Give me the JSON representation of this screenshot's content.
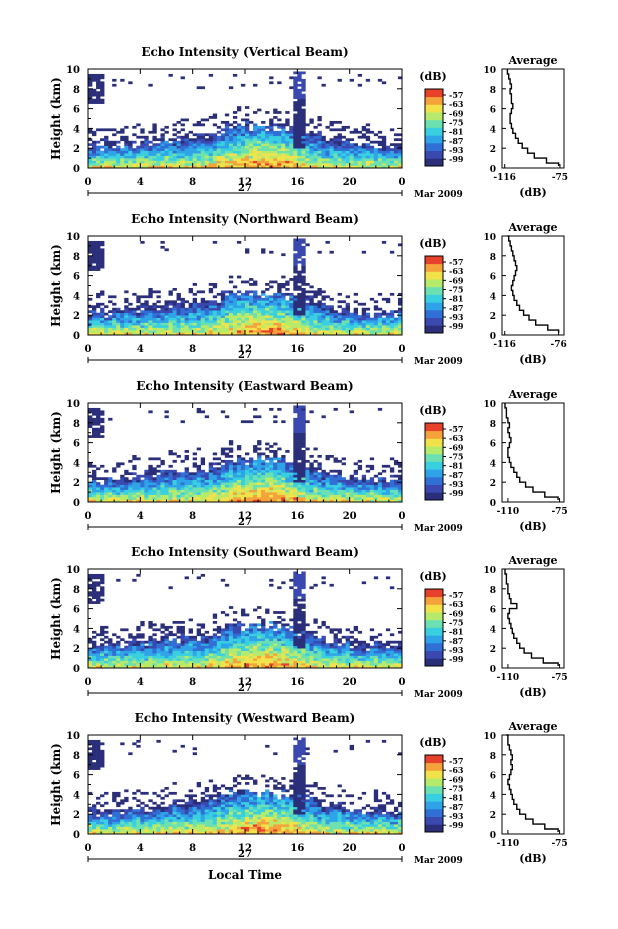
{
  "chart_data": [
    {
      "type": "heatmap",
      "title": "Echo Intensity (Vertical Beam)",
      "ylabel": "Height (km)",
      "x_ticks": [
        "0",
        "4",
        "8",
        "12",
        "16",
        "20",
        "0"
      ],
      "y_ticks": [
        "0",
        "2",
        "4",
        "6",
        "8",
        "10"
      ],
      "date_label": "27",
      "month_label": "Mar 2009",
      "xlim_hours": [
        0,
        24
      ],
      "ylim_km": [
        0,
        10
      ],
      "colorbar": {
        "unit": "(dB)",
        "levels": [
          "-57",
          "-63",
          "-69",
          "-75",
          "-81",
          "-87",
          "-93",
          "-99"
        ]
      },
      "average_profile": {
        "title": "Average",
        "xlabel": "(dB)",
        "x_ticks": [
          "-116",
          "-75"
        ],
        "xlim": [
          -118,
          -72
        ],
        "y_ticks": [
          "0",
          "2",
          "4",
          "6",
          "8",
          "10"
        ],
        "height_km": [
          0.2,
          0.5,
          1,
          1.5,
          2,
          2.5,
          3,
          3.5,
          4,
          4.5,
          5,
          5.5,
          6,
          6.5,
          7,
          7.5,
          8,
          8.5,
          9,
          9.5,
          10
        ],
        "value_db": [
          -76,
          -85,
          -94,
          -99,
          -103,
          -106,
          -108,
          -110,
          -111,
          -112,
          -112,
          -111,
          -110,
          -111,
          -111,
          -112,
          -111,
          -112,
          -113,
          -114,
          -114
        ]
      }
    },
    {
      "type": "heatmap",
      "title": "Echo Intensity (Northward Beam)",
      "ylabel": "Height (km)",
      "x_ticks": [
        "0",
        "4",
        "8",
        "12",
        "16",
        "20",
        "0"
      ],
      "y_ticks": [
        "0",
        "2",
        "4",
        "6",
        "8",
        "10"
      ],
      "date_label": "27",
      "month_label": "Mar 2009",
      "xlim_hours": [
        0,
        24
      ],
      "ylim_km": [
        0,
        10
      ],
      "colorbar": {
        "unit": "(dB)",
        "levels": [
          "-57",
          "-63",
          "-69",
          "-75",
          "-81",
          "-87",
          "-93",
          "-99"
        ]
      },
      "average_profile": {
        "title": "Average",
        "xlabel": "(dB)",
        "x_ticks": [
          "-116",
          "-76"
        ],
        "xlim": [
          -118,
          -72
        ],
        "y_ticks": [
          "0",
          "2",
          "4",
          "6",
          "8",
          "10"
        ],
        "height_km": [
          0.2,
          0.5,
          1,
          1.5,
          2,
          2.5,
          3,
          3.5,
          4,
          4.5,
          5,
          5.5,
          6,
          6.5,
          7,
          7.5,
          8,
          8.5,
          9,
          9.5,
          10
        ],
        "value_db": [
          -76,
          -84,
          -93,
          -98,
          -102,
          -105,
          -107,
          -109,
          -110,
          -111,
          -110,
          -109,
          -108,
          -107,
          -108,
          -109,
          -110,
          -111,
          -112,
          -113,
          -114
        ]
      }
    },
    {
      "type": "heatmap",
      "title": "Echo Intensity (Eastward Beam)",
      "ylabel": "Height (km)",
      "x_ticks": [
        "0",
        "4",
        "8",
        "12",
        "16",
        "20",
        "0"
      ],
      "y_ticks": [
        "0",
        "2",
        "4",
        "6",
        "8",
        "10"
      ],
      "date_label": "27",
      "month_label": "Mar 2009",
      "xlim_hours": [
        0,
        24
      ],
      "ylim_km": [
        0,
        10
      ],
      "colorbar": {
        "unit": "(dB)",
        "levels": [
          "-57",
          "-63",
          "-69",
          "-75",
          "-81",
          "-87",
          "-93",
          "-99"
        ]
      },
      "average_profile": {
        "title": "Average",
        "xlabel": "(dB)",
        "x_ticks": [
          "-110",
          "-75"
        ],
        "xlim": [
          -114,
          -72
        ],
        "y_ticks": [
          "0",
          "2",
          "4",
          "6",
          "8",
          "10"
        ],
        "height_km": [
          0.2,
          0.5,
          1,
          1.5,
          2,
          2.5,
          3,
          3.5,
          4,
          4.5,
          5,
          5.5,
          6,
          6.5,
          7,
          7.5,
          8,
          8.5,
          9,
          9.5,
          10
        ],
        "value_db": [
          -76,
          -85,
          -93,
          -98,
          -102,
          -104,
          -106,
          -108,
          -109,
          -110,
          -110,
          -109,
          -108,
          -109,
          -110,
          -109,
          -110,
          -111,
          -111,
          -112,
          -112
        ]
      }
    },
    {
      "type": "heatmap",
      "title": "Echo Intensity (Southward Beam)",
      "ylabel": "Height (km)",
      "x_ticks": [
        "0",
        "4",
        "8",
        "12",
        "16",
        "20",
        "0"
      ],
      "y_ticks": [
        "0",
        "2",
        "4",
        "6",
        "8",
        "10"
      ],
      "date_label": "27",
      "month_label": "Mar 2009",
      "xlim_hours": [
        0,
        24
      ],
      "ylim_km": [
        0,
        10
      ],
      "colorbar": {
        "unit": "(dB)",
        "levels": [
          "-57",
          "-63",
          "-69",
          "-75",
          "-81",
          "-87",
          "-93",
          "-99"
        ]
      },
      "average_profile": {
        "title": "Average",
        "xlabel": "(dB)",
        "x_ticks": [
          "-110",
          "-75"
        ],
        "xlim": [
          -114,
          -72
        ],
        "y_ticks": [
          "0",
          "2",
          "4",
          "6",
          "8",
          "10"
        ],
        "height_km": [
          0.2,
          0.5,
          1,
          1.5,
          2,
          2.5,
          3,
          3.5,
          4,
          4.5,
          5,
          5.5,
          6,
          6.5,
          7,
          7.5,
          8,
          8.5,
          9,
          9.5,
          10
        ],
        "value_db": [
          -76,
          -86,
          -94,
          -99,
          -102,
          -104,
          -106,
          -107,
          -108,
          -109,
          -110,
          -109,
          -104,
          -108,
          -109,
          -110,
          -110,
          -111,
          -111,
          -112,
          -112
        ]
      }
    },
    {
      "type": "heatmap",
      "title": "Echo Intensity (Westward Beam)",
      "ylabel": "Height (km)",
      "x_ticks": [
        "0",
        "4",
        "8",
        "12",
        "16",
        "20",
        "0"
      ],
      "y_ticks": [
        "0",
        "2",
        "4",
        "6",
        "8",
        "10"
      ],
      "date_label": "27",
      "month_label": "Mar 2009",
      "xlim_hours": [
        0,
        24
      ],
      "ylim_km": [
        0,
        10
      ],
      "colorbar": {
        "unit": "(dB)",
        "levels": [
          "-57",
          "-63",
          "-69",
          "-75",
          "-81",
          "-87",
          "-93",
          "-99"
        ]
      },
      "average_profile": {
        "title": "Average",
        "xlabel": "(dB)",
        "x_ticks": [
          "-110",
          "-75"
        ],
        "xlim": [
          -114,
          -72
        ],
        "y_ticks": [
          "0",
          "2",
          "4",
          "6",
          "8",
          "10"
        ],
        "height_km": [
          0.2,
          0.5,
          1,
          1.5,
          2,
          2.5,
          3,
          3.5,
          4,
          4.5,
          5,
          5.5,
          6,
          6.5,
          7,
          7.5,
          8,
          8.5,
          9,
          9.5,
          10
        ],
        "value_db": [
          -76,
          -85,
          -93,
          -98,
          -102,
          -104,
          -106,
          -107,
          -108,
          -109,
          -110,
          -109,
          -108,
          -107,
          -108,
          -107,
          -108,
          -109,
          -110,
          -110,
          -111
        ]
      }
    }
  ],
  "bottom_xlabel": "Local Time",
  "colormap": [
    "#2b2f7a",
    "#3a49b0",
    "#2f6fd6",
    "#2fa3e8",
    "#38cfe0",
    "#6be0b0",
    "#b6ea6a",
    "#f2e24a",
    "#f6a23a",
    "#e8412b"
  ]
}
